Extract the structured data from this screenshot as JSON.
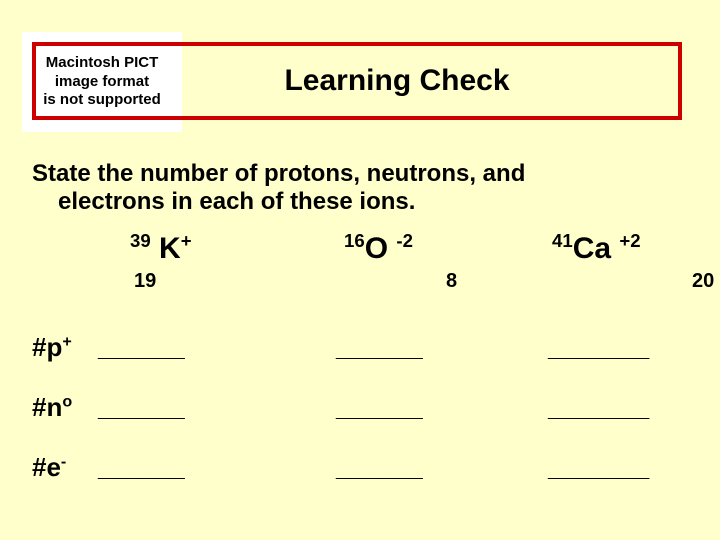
{
  "colors": {
    "page_bg": "#ffffcc",
    "title_border": "#cc0000",
    "text": "#000000",
    "placeholder_bg": "#ffffff"
  },
  "placeholder": {
    "line1": "Macintosh PICT",
    "line2": "image format",
    "line3": "is not supported"
  },
  "title": "Learning Check",
  "prompt": {
    "line1": "State the number of protons, neutrons, and",
    "line2": "electrons in each of these ions."
  },
  "ions": [
    {
      "mass": "39",
      "symbol": "K",
      "charge": "+",
      "atomic": "19"
    },
    {
      "mass": "16",
      "symbol": "O",
      "charge": "-2",
      "atomic": "8"
    },
    {
      "mass": "41",
      "symbol": "Ca",
      "charge": "+2",
      "atomic": "20"
    }
  ],
  "labels": {
    "p": {
      "prefix": "#p",
      "sup": "+"
    },
    "n": {
      "prefix": "#n",
      "sup": "o"
    },
    "e": {
      "prefix": "#e",
      "sup": "-"
    }
  },
  "blanks": {
    "short": "______",
    "long": "_______"
  }
}
